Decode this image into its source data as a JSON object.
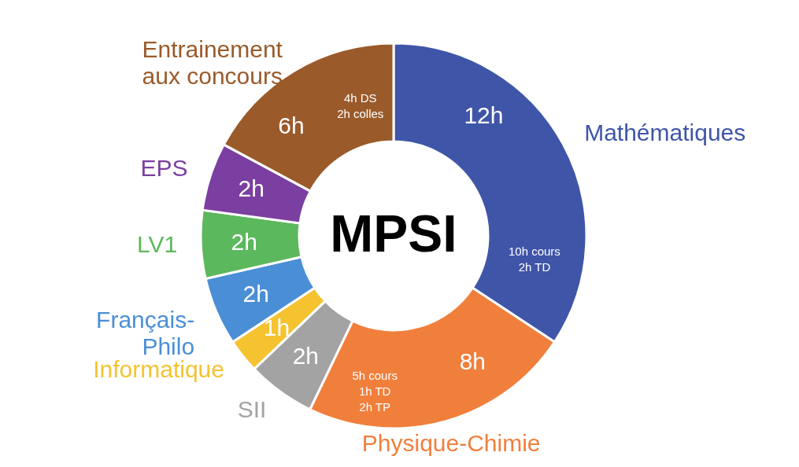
{
  "chart_data": {
    "type": "donut",
    "title": "MPSI",
    "categories": [
      "Mathématiques",
      "Physique-Chimie",
      "SII",
      "Informatique",
      "Français-\nPhilo",
      "LV1",
      "EPS",
      "Entrainement\naux concours"
    ],
    "values": [
      12,
      8,
      2,
      1,
      2,
      2,
      2,
      6
    ],
    "colors": [
      "#3f55a8",
      "#f07f3c",
      "#a3a3a3",
      "#f5c230",
      "#4a8fd6",
      "#5cb85c",
      "#7a3fa0",
      "#9a5a2a"
    ],
    "value_labels": [
      "12h",
      "8h",
      "2h",
      "1h",
      "2h",
      "2h",
      "2h",
      "6h"
    ],
    "annotations": [
      {
        "text": "10h cours\n2h TD",
        "x": "Mathématiques"
      },
      {
        "text": "5h cours\n1h TD\n2h TP",
        "x": "Physique-Chimie"
      },
      {
        "text": "4h DS\n2h colles",
        "x": "Entrainement\naux concours"
      }
    ]
  }
}
